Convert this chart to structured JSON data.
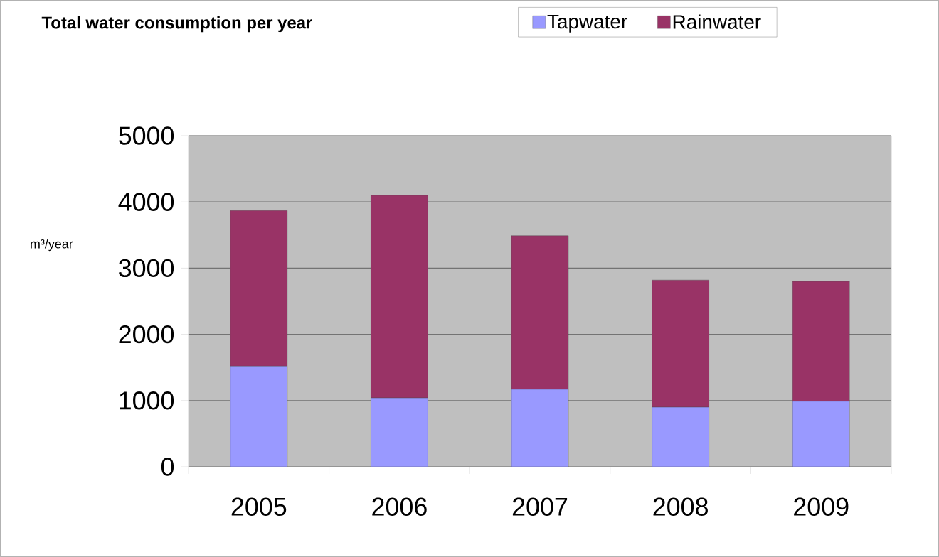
{
  "chart_data": {
    "type": "bar",
    "stacked": true,
    "title": "Total water consumption per year",
    "ylabel": "m³/year",
    "categories": [
      "2005",
      "2006",
      "2007",
      "2008",
      "2009"
    ],
    "series": [
      {
        "name": "Tapwater",
        "color": "#9999ff",
        "values": [
          1520,
          1040,
          1170,
          900,
          990
        ]
      },
      {
        "name": "Rainwater",
        "color": "#993366",
        "values": [
          2350,
          3060,
          2320,
          1920,
          1810
        ]
      }
    ],
    "ylim": [
      0,
      5000
    ],
    "yticks": [
      0,
      1000,
      2000,
      3000,
      4000,
      5000
    ],
    "grid": "y",
    "legend": "top right"
  }
}
